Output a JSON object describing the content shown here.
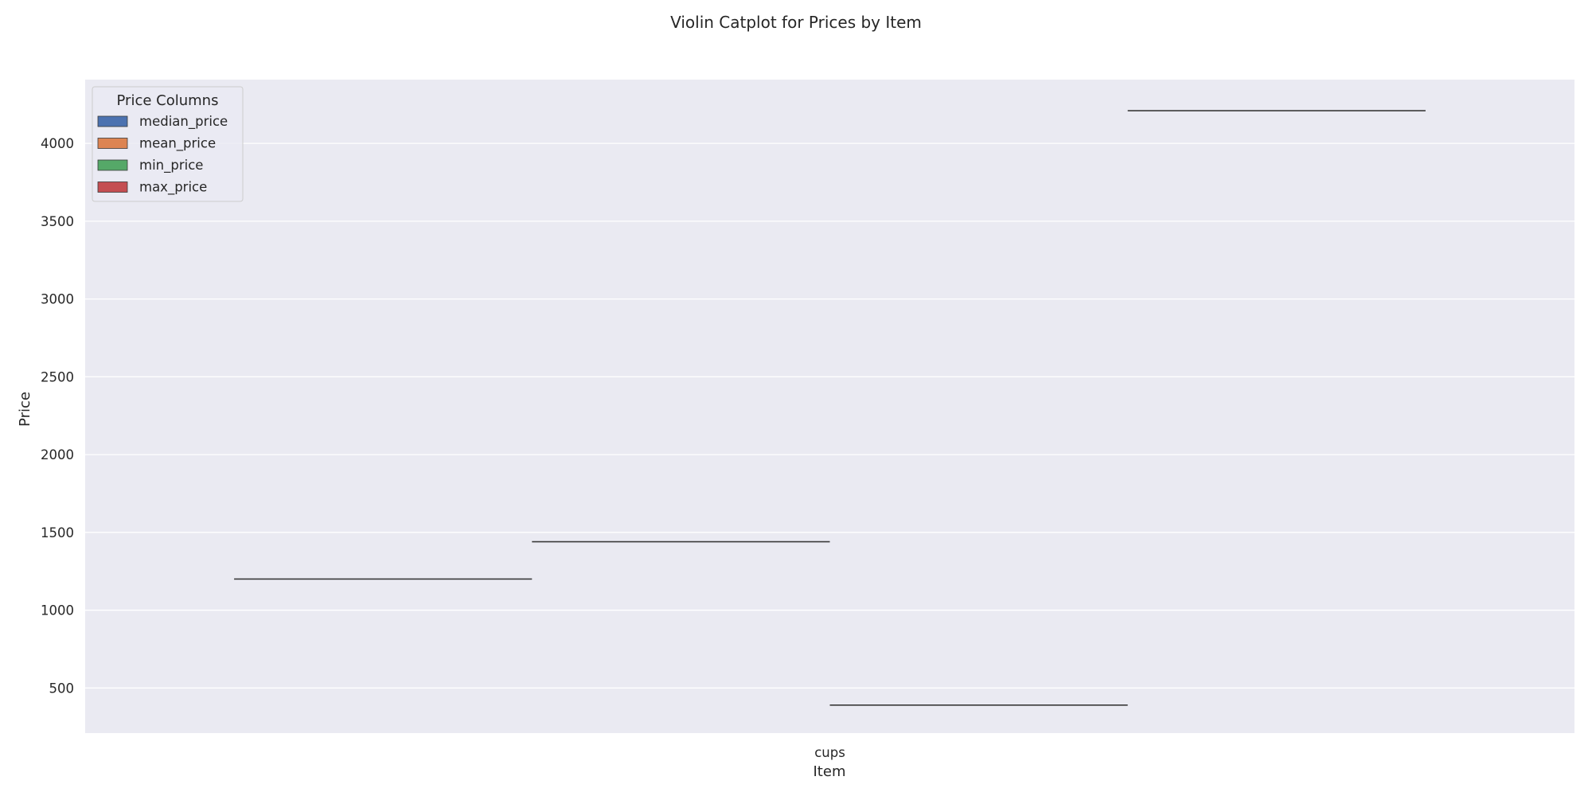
{
  "chart_data": {
    "type": "violin",
    "title": "Violin Catplot for Prices by Item",
    "xlabel": "Item",
    "ylabel": "Price",
    "categories": [
      "cups"
    ],
    "yticks": [
      500,
      1000,
      1500,
      2000,
      2500,
      3000,
      3500,
      4000
    ],
    "ylim": [
      210,
      4410
    ],
    "grid": true,
    "legend": {
      "title": "Price Columns",
      "placement": "top-left"
    },
    "series": [
      {
        "name": "median_price",
        "color": "#4c72b0",
        "values": [
          1200
        ]
      },
      {
        "name": "mean_price",
        "color": "#dd8452",
        "values": [
          1440
        ]
      },
      {
        "name": "min_price",
        "color": "#55a868",
        "values": [
          390
        ]
      },
      {
        "name": "max_price",
        "color": "#c44e52",
        "values": [
          4210
        ]
      }
    ]
  }
}
